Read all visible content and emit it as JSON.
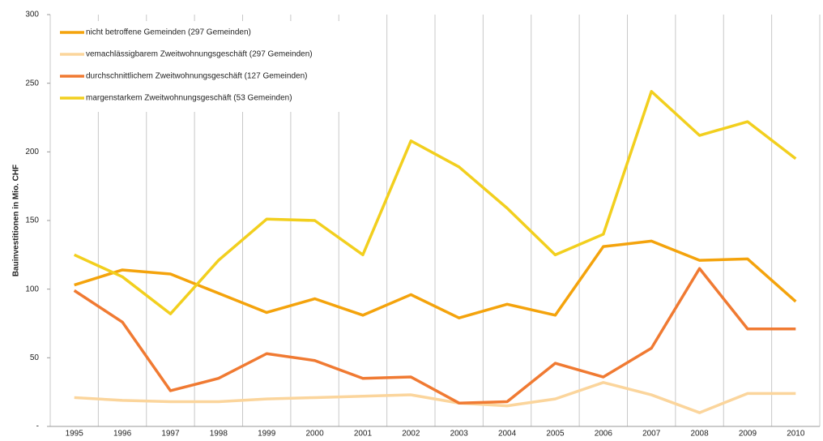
{
  "chart_data": {
    "type": "line",
    "y_label": "Bauinvestitionen in Mio. CHF",
    "categories": [
      "1995",
      "1996",
      "1997",
      "1998",
      "1999",
      "2000",
      "2001",
      "2002",
      "2003",
      "2004",
      "2005",
      "2006",
      "2007",
      "2008",
      "2009",
      "2010"
    ],
    "series": [
      {
        "name": "nicht betroffene Gemeinden (297 Gemeinden)",
        "color": "#f4a30c",
        "values": [
          103,
          114,
          111,
          97,
          83,
          93,
          81,
          96,
          79,
          89,
          81,
          131,
          135,
          121,
          122,
          91
        ]
      },
      {
        "name": "vemachlässigbarem Zweitwohnungsgeschäft (297 Gemeinden)",
        "color": "#fbd59c",
        "values": [
          21,
          19,
          18,
          18,
          20,
          21,
          22,
          23,
          17,
          15,
          20,
          32,
          23,
          10,
          24,
          24
        ]
      },
      {
        "name": "durchschnittlichem Zweitwohnungsgeschäft (127 Gemeinden)",
        "color": "#f07a32",
        "values": [
          99,
          76,
          26,
          35,
          53,
          48,
          35,
          36,
          17,
          18,
          46,
          36,
          57,
          115,
          71,
          71
        ]
      },
      {
        "name": "margenstarkem Zweitwohnungsgeschäft (53 Gemeinden)",
        "color": "#f2cf1e",
        "values": [
          125,
          109,
          82,
          121,
          151,
          150,
          125,
          208,
          189,
          159,
          125,
          140,
          244,
          212,
          222,
          195
        ]
      }
    ],
    "ylim": [
      0,
      300
    ],
    "yticks": [
      {
        "value": 0,
        "label": "-"
      },
      50,
      100,
      150,
      200,
      250,
      300
    ],
    "grid": "vertical",
    "legend": "top-left"
  }
}
